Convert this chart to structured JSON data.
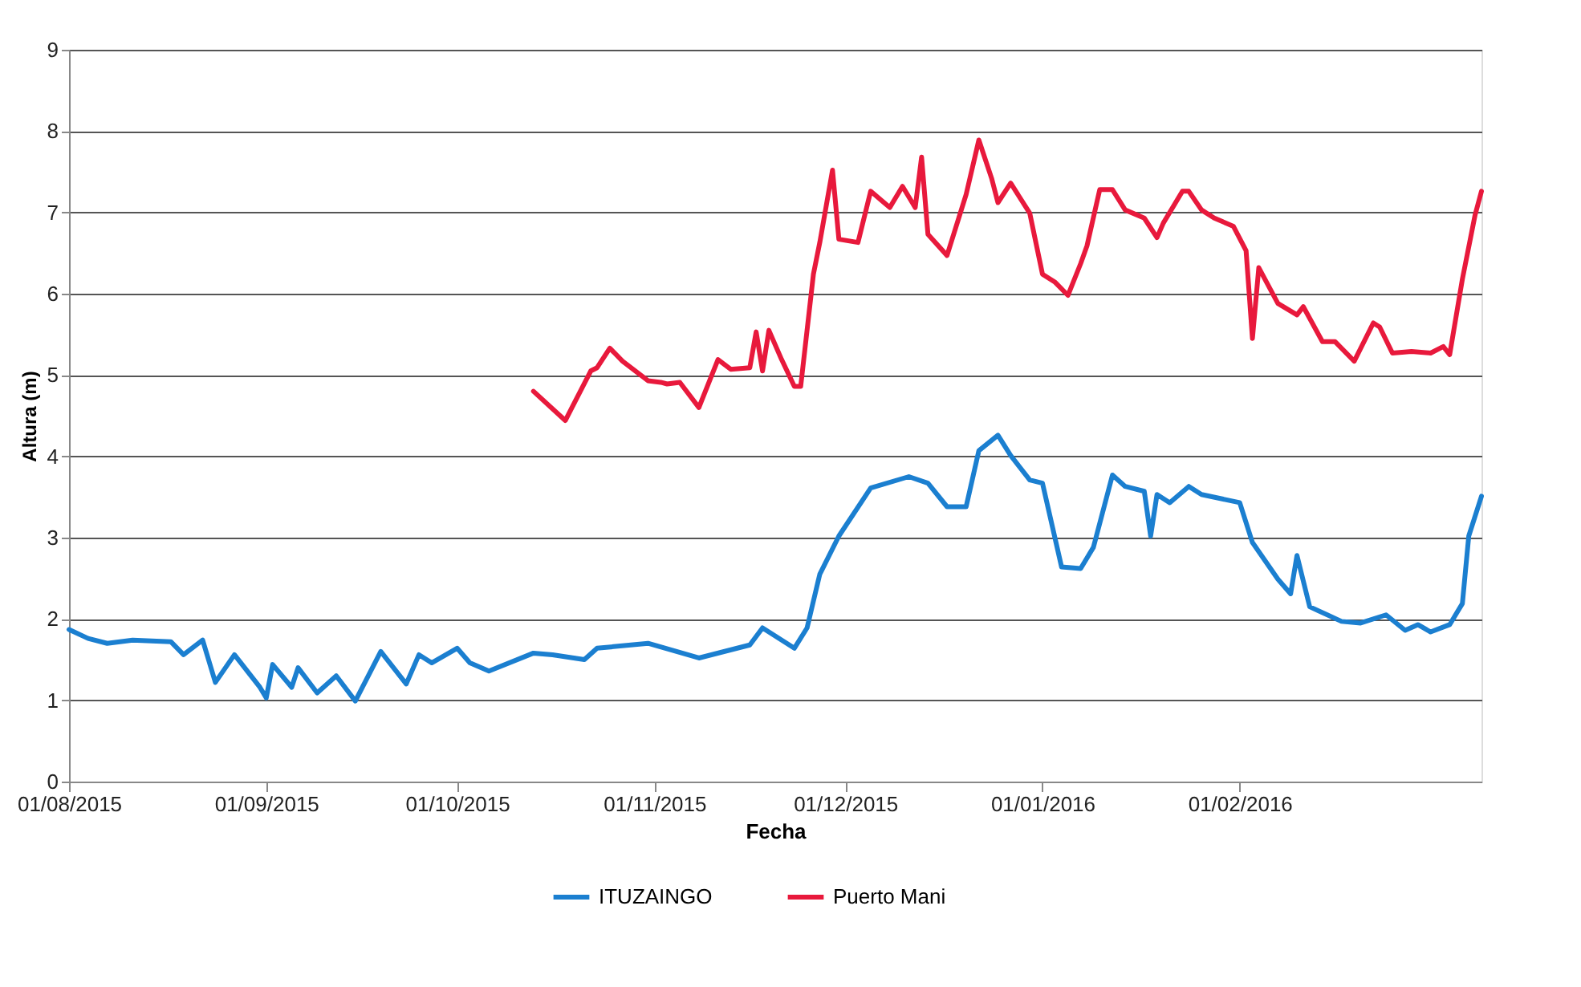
{
  "chart_data": {
    "type": "line",
    "xlabel": "Fecha",
    "ylabel": "Altura (m)",
    "xlim": [
      "2015-08-01",
      "2016-03-10"
    ],
    "xticks": [
      {
        "value": "2015-08-01",
        "label": "01/08/2015"
      },
      {
        "value": "2015-09-01",
        "label": "01/09/2015"
      },
      {
        "value": "2015-10-01",
        "label": "01/10/2015"
      },
      {
        "value": "2015-11-01",
        "label": "01/11/2015"
      },
      {
        "value": "2015-12-01",
        "label": "01/12/2015"
      },
      {
        "value": "2016-01-01",
        "label": "01/01/2016"
      },
      {
        "value": "2016-02-01",
        "label": "01/02/2016"
      }
    ],
    "ylim": [
      0,
      9
    ],
    "yticks": [
      0,
      1,
      2,
      3,
      4,
      5,
      6,
      7,
      8,
      9
    ],
    "grid": "y",
    "legend": "bottom",
    "marker": "none",
    "line_style": "solid",
    "series": [
      {
        "name": "ITUZAINGO",
        "color": "#1b7fd0",
        "x": [
          "2015-08-01",
          "2015-08-04",
          "2015-08-07",
          "2015-08-11",
          "2015-08-17",
          "2015-08-19",
          "2015-08-22",
          "2015-08-24",
          "2015-08-27",
          "2015-08-31",
          "2015-09-01",
          "2015-09-02",
          "2015-09-05",
          "2015-09-06",
          "2015-09-09",
          "2015-09-12",
          "2015-09-15",
          "2015-09-19",
          "2015-09-23",
          "2015-09-25",
          "2015-09-27",
          "2015-10-01",
          "2015-10-03",
          "2015-10-06",
          "2015-10-13",
          "2015-10-16",
          "2015-10-21",
          "2015-10-23",
          "2015-10-31",
          "2015-11-08",
          "2015-11-16",
          "2015-11-18",
          "2015-11-23",
          "2015-11-25",
          "2015-11-27",
          "2015-11-30",
          "2015-12-05",
          "2015-12-11",
          "2015-12-14",
          "2015-12-17",
          "2015-12-20",
          "2015-12-22",
          "2015-12-25",
          "2015-12-27",
          "2015-12-30",
          "2016-01-01",
          "2016-01-04",
          "2016-01-07",
          "2016-01-09",
          "2016-01-12",
          "2016-01-14",
          "2016-01-17",
          "2016-01-18",
          "2016-01-19",
          "2016-01-21",
          "2016-01-24",
          "2016-01-26",
          "2016-02-01",
          "2016-02-03",
          "2016-02-07",
          "2016-02-09",
          "2016-02-10",
          "2016-02-12",
          "2016-02-17",
          "2016-02-20",
          "2016-02-24",
          "2016-02-27",
          "2016-02-29",
          "2016-03-02",
          "2016-03-05",
          "2016-03-07",
          "2016-03-08",
          "2016-03-10"
        ],
        "values": [
          1.87,
          1.76,
          1.7,
          1.74,
          1.72,
          1.56,
          1.74,
          1.22,
          1.56,
          1.16,
          1.03,
          1.44,
          1.16,
          1.4,
          1.09,
          1.3,
          0.99,
          1.6,
          1.2,
          1.56,
          1.46,
          1.64,
          1.46,
          1.36,
          1.58,
          1.56,
          1.5,
          1.64,
          1.7,
          1.52,
          1.68,
          1.89,
          1.64,
          1.89,
          2.55,
          3.02,
          3.61,
          3.75,
          3.67,
          3.38,
          3.38,
          4.07,
          4.26,
          4.01,
          3.71,
          3.67,
          2.64,
          2.62,
          2.88,
          3.77,
          3.63,
          3.57,
          3.02,
          3.53,
          3.43,
          3.63,
          3.53,
          3.43,
          2.94,
          2.49,
          2.31,
          2.78,
          2.15,
          1.97,
          1.95,
          2.05,
          1.86,
          1.93,
          1.84,
          1.93,
          2.19,
          3.02,
          3.51
        ]
      },
      {
        "name": "Puerto Mani",
        "color": "#e8193c",
        "x": [
          "2015-10-13",
          "2015-10-18",
          "2015-10-22",
          "2015-10-23",
          "2015-10-25",
          "2015-10-27",
          "2015-10-31",
          "2015-11-02",
          "2015-11-03",
          "2015-11-05",
          "2015-11-08",
          "2015-11-11",
          "2015-11-13",
          "2015-11-16",
          "2015-11-17",
          "2015-11-18",
          "2015-11-19",
          "2015-11-21",
          "2015-11-23",
          "2015-11-24",
          "2015-11-26",
          "2015-11-27",
          "2015-11-29",
          "2015-11-30",
          "2015-12-03",
          "2015-12-05",
          "2015-12-08",
          "2015-12-10",
          "2015-12-12",
          "2015-12-13",
          "2015-12-14",
          "2015-12-17",
          "2015-12-20",
          "2015-12-22",
          "2015-12-24",
          "2015-12-25",
          "2015-12-27",
          "2015-12-30",
          "2016-01-01",
          "2016-01-03",
          "2016-01-05",
          "2016-01-07",
          "2016-01-08",
          "2016-01-10",
          "2016-01-12",
          "2016-01-14",
          "2016-01-17",
          "2016-01-19",
          "2016-01-20",
          "2016-01-23",
          "2016-01-24",
          "2016-01-26",
          "2016-01-28",
          "2016-01-31",
          "2016-02-02",
          "2016-02-03",
          "2016-02-04",
          "2016-02-07",
          "2016-02-10",
          "2016-02-11",
          "2016-02-14",
          "2016-02-16",
          "2016-02-19",
          "2016-02-22",
          "2016-02-23",
          "2016-02-25",
          "2016-02-28",
          "2016-03-02",
          "2016-03-04",
          "2016-03-05",
          "2016-03-07",
          "2016-03-09",
          "2016-03-10"
        ],
        "values": [
          4.8,
          4.44,
          5.05,
          5.09,
          5.33,
          5.17,
          4.93,
          4.91,
          4.89,
          4.91,
          4.6,
          5.19,
          5.07,
          5.09,
          5.53,
          5.05,
          5.55,
          5.19,
          4.86,
          4.86,
          6.24,
          6.63,
          7.52,
          6.67,
          6.63,
          7.26,
          7.06,
          7.32,
          7.06,
          7.68,
          6.73,
          6.47,
          7.22,
          7.89,
          7.42,
          7.12,
          7.36,
          6.99,
          6.24,
          6.14,
          5.98,
          6.37,
          6.59,
          7.28,
          7.28,
          7.03,
          6.93,
          6.69,
          6.87,
          7.26,
          7.26,
          7.03,
          6.93,
          6.83,
          6.53,
          5.45,
          6.32,
          5.88,
          5.74,
          5.84,
          5.41,
          5.41,
          5.17,
          5.64,
          5.59,
          5.27,
          5.29,
          5.27,
          5.35,
          5.25,
          6.18,
          6.97,
          7.26
        ]
      }
    ]
  }
}
